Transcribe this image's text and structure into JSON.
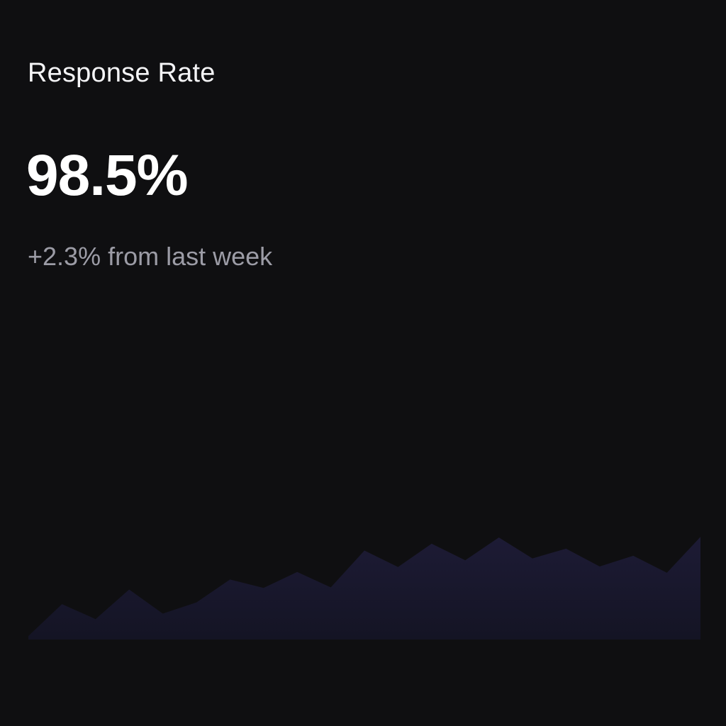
{
  "card": {
    "title": "Response Rate",
    "value": "98.5%",
    "change": "+2.3% from last week"
  },
  "colors": {
    "background": "#0f0f11",
    "title": "#f4f4f6",
    "value": "#ffffff",
    "change": "#9c9ca6",
    "area_top": "#1d1b35",
    "area_bottom": "#141424"
  },
  "chart_data": {
    "type": "area",
    "x": [
      1,
      2,
      3,
      4,
      5,
      6,
      7,
      8,
      9,
      10,
      11,
      12,
      13,
      14,
      15,
      16,
      17,
      18,
      19,
      20,
      21
    ],
    "values": [
      3.0,
      30.8,
      17.8,
      43.5,
      22.5,
      32.3,
      52.2,
      44.9,
      58.8,
      45.4,
      77.5,
      63.1,
      83.4,
      69.0,
      88.8,
      70.6,
      79.1,
      63.6,
      72.9,
      58.1,
      89.3
    ],
    "ylim": [
      0,
      100
    ],
    "grid": false,
    "legend": "none"
  }
}
